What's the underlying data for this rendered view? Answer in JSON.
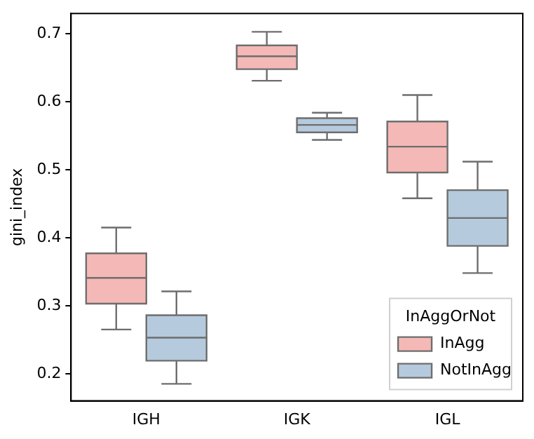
{
  "chart_data": {
    "type": "box",
    "ylabel": "gini_index",
    "legend_title": "InAggOrNot",
    "categories": [
      "IGH",
      "IGK",
      "IGL"
    ],
    "series": [
      {
        "name": "InAgg",
        "color": "#f4b9b6",
        "boxes": [
          {
            "low": 0.265,
            "q1": 0.303,
            "median": 0.341,
            "q3": 0.377,
            "high": 0.415
          },
          {
            "low": 0.631,
            "q1": 0.648,
            "median": 0.667,
            "q3": 0.683,
            "high": 0.703
          },
          {
            "low": 0.458,
            "q1": 0.496,
            "median": 0.534,
            "q3": 0.571,
            "high": 0.61
          }
        ]
      },
      {
        "name": "NotInAgg",
        "color": "#b5cadd",
        "boxes": [
          {
            "low": 0.185,
            "q1": 0.219,
            "median": 0.253,
            "q3": 0.286,
            "high": 0.321
          },
          {
            "low": 0.544,
            "q1": 0.555,
            "median": 0.566,
            "q3": 0.576,
            "high": 0.584
          },
          {
            "low": 0.348,
            "q1": 0.388,
            "median": 0.429,
            "q3": 0.47,
            "high": 0.512
          }
        ]
      }
    ],
    "ylim": [
      0.16,
      0.73
    ],
    "yticks": [
      0.2,
      0.3,
      0.4,
      0.5,
      0.6,
      0.7
    ],
    "legend": "bottom right"
  }
}
